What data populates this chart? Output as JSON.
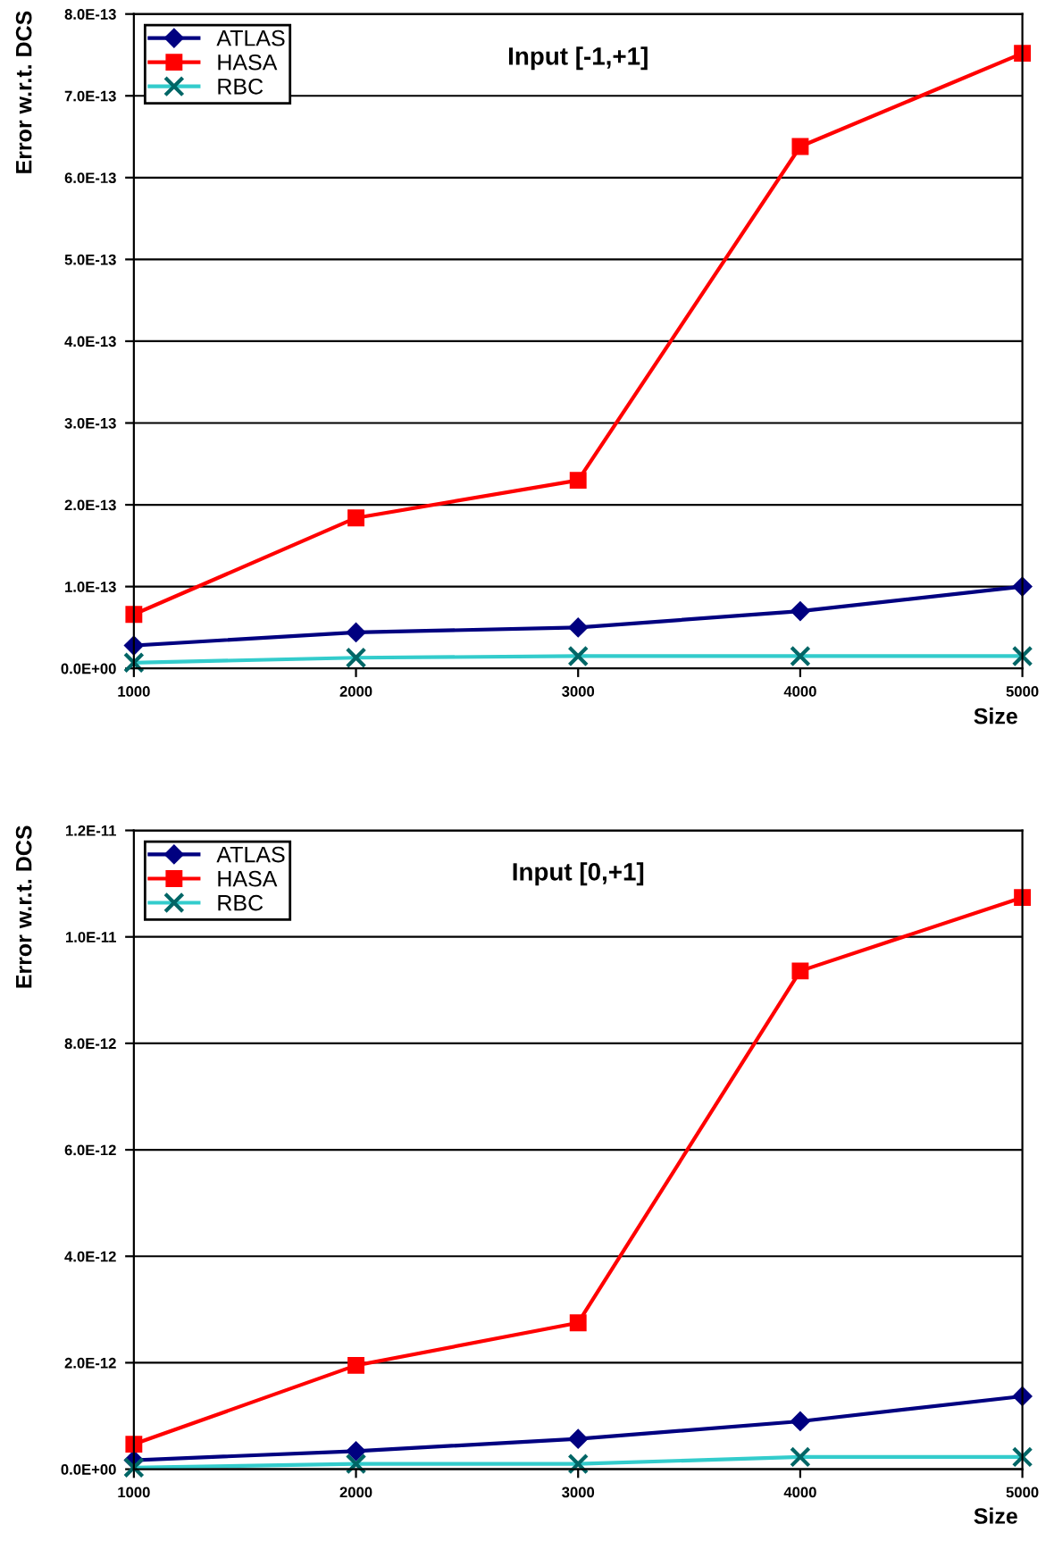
{
  "chart_data": [
    {
      "type": "line",
      "title": "Input [-1,+1]",
      "xlabel": "Size",
      "ylabel": "Error w.r.t. DCS",
      "categories": [
        "1000",
        "2000",
        "3000",
        "4000",
        "5000"
      ],
      "series": [
        {
          "name": "ATLAS",
          "color": "#000080",
          "marker": "diamond",
          "values": [
            2.8e-14,
            4.4e-14,
            5e-14,
            7e-14,
            1e-13
          ]
        },
        {
          "name": "HASA",
          "color": "#ff0000",
          "marker": "square",
          "values": [
            6.6e-14,
            1.84e-13,
            2.3e-13,
            6.38e-13,
            7.52e-13
          ]
        },
        {
          "name": "RBC",
          "color": "#33cccc",
          "marker": "cross",
          "values": [
            7e-15,
            1.3e-14,
            1.5e-14,
            1.5e-14,
            1.5e-14
          ]
        }
      ],
      "ylim": [
        0,
        8e-13
      ],
      "yticks": [
        {
          "value": 0,
          "label": "0.0E+00"
        },
        {
          "value": 1e-13,
          "label": "1.0E-13"
        },
        {
          "value": 2e-13,
          "label": "2.0E-13"
        },
        {
          "value": 3e-13,
          "label": "3.0E-13"
        },
        {
          "value": 4e-13,
          "label": "4.0E-13"
        },
        {
          "value": 5e-13,
          "label": "5.0E-13"
        },
        {
          "value": 6e-13,
          "label": "6.0E-13"
        },
        {
          "value": 7e-13,
          "label": "7.0E-13"
        },
        {
          "value": 8e-13,
          "label": "8.0E-13"
        }
      ],
      "grid": "y",
      "legend": "top left",
      "line_style": "solid"
    },
    {
      "type": "line",
      "title": "Input [0,+1]",
      "xlabel": "Size",
      "ylabel": "Error w.r.t. DCS",
      "categories": [
        "1000",
        "2000",
        "3000",
        "4000",
        "5000"
      ],
      "series": [
        {
          "name": "ATLAS",
          "color": "#000080",
          "marker": "diamond",
          "values": [
            1.7e-13,
            3.4e-13,
            5.7e-13,
            9e-13,
            1.37e-12
          ]
        },
        {
          "name": "HASA",
          "color": "#ff0000",
          "marker": "square",
          "values": [
            4.7e-13,
            1.95e-12,
            2.75e-12,
            9.36e-12,
            1.074e-11
          ]
        },
        {
          "name": "RBC",
          "color": "#33cccc",
          "marker": "cross",
          "values": [
            3e-14,
            1e-13,
            1e-13,
            2.3e-13,
            2.3e-13
          ]
        }
      ],
      "ylim": [
        0,
        1.2e-11
      ],
      "yticks": [
        {
          "value": 0,
          "label": "0.0E+00"
        },
        {
          "value": 2e-12,
          "label": "2.0E-12"
        },
        {
          "value": 4e-12,
          "label": "4.0E-12"
        },
        {
          "value": 6e-12,
          "label": "6.0E-12"
        },
        {
          "value": 8e-12,
          "label": "8.0E-12"
        },
        {
          "value": 1e-11,
          "label": "1.0E-11"
        },
        {
          "value": 1.2e-11,
          "label": "1.2E-11"
        }
      ],
      "grid": "y",
      "legend": "top left",
      "line_style": "solid"
    }
  ]
}
